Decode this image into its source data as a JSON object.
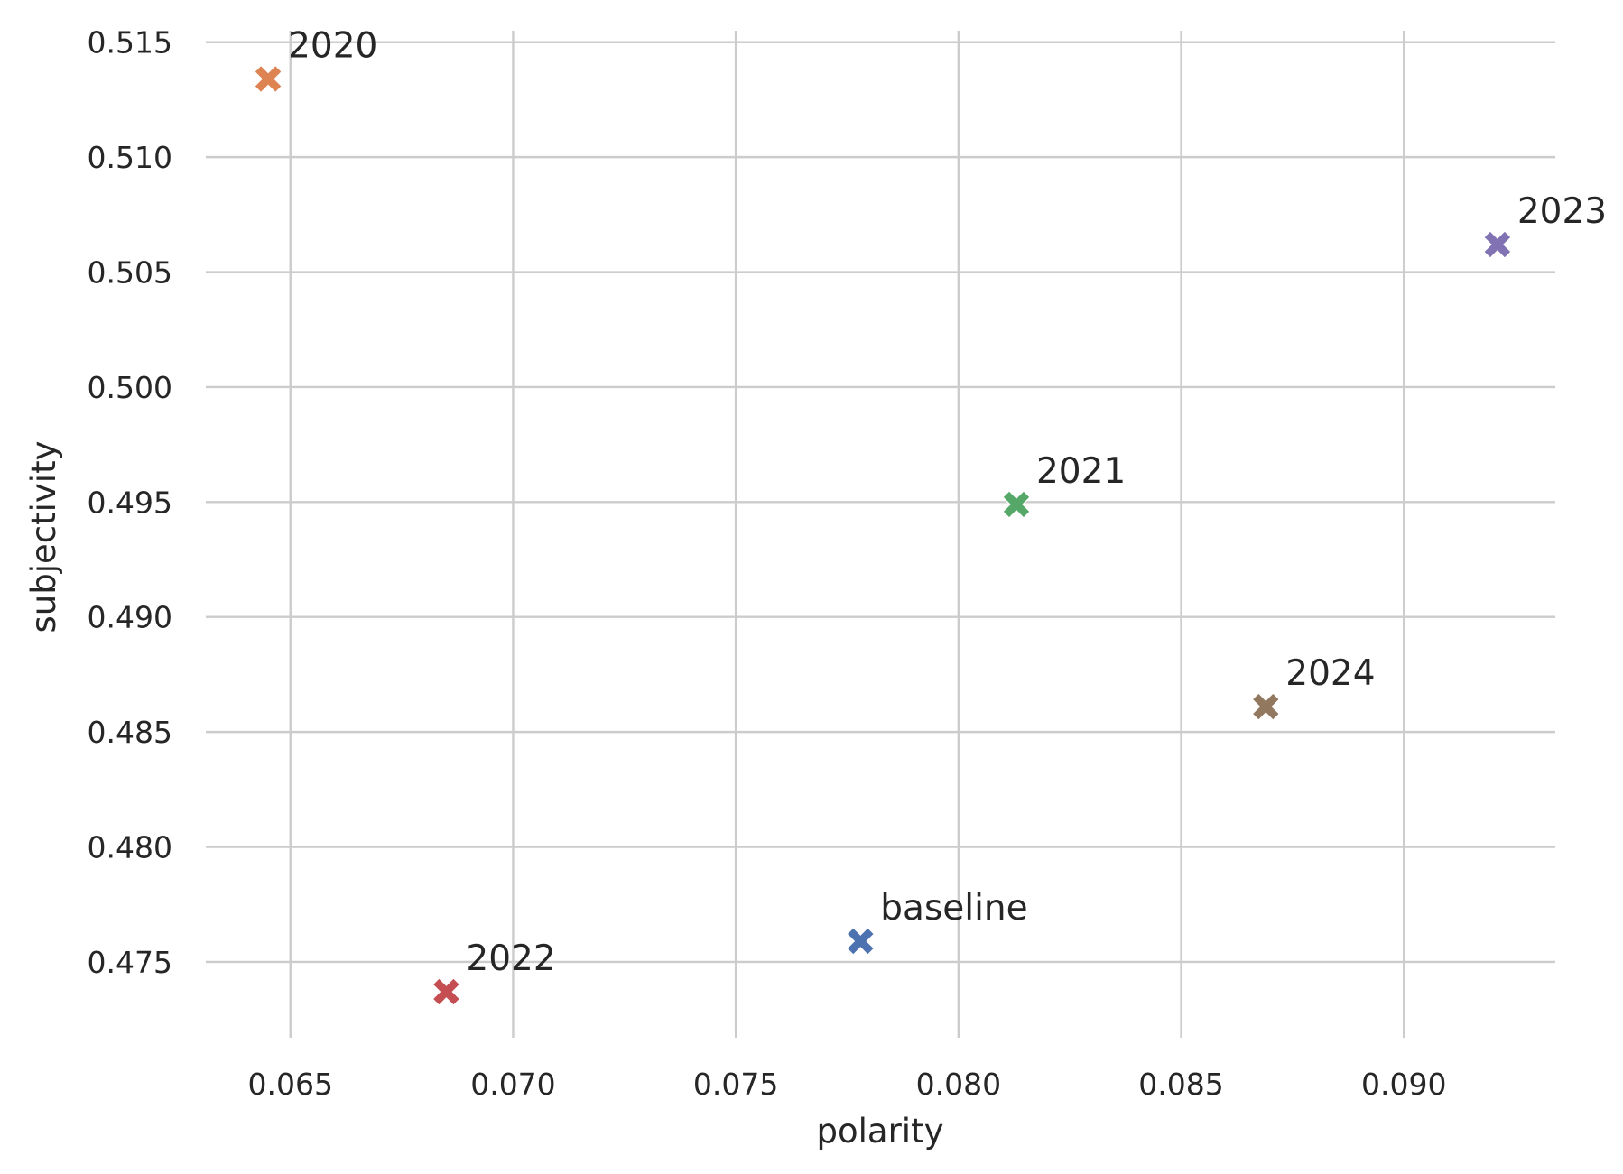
{
  "chart_data": {
    "type": "scatter",
    "title": "",
    "xlabel": "polarity",
    "ylabel": "subjectivity",
    "xlim": [
      0.0631,
      0.0934
    ],
    "ylim": [
      0.4717,
      0.5155
    ],
    "xticks": [
      "0.065",
      "0.070",
      "0.075",
      "0.080",
      "0.085",
      "0.090"
    ],
    "yticks": [
      "0.475",
      "0.480",
      "0.485",
      "0.490",
      "0.495",
      "0.500",
      "0.505",
      "0.510",
      "0.515"
    ],
    "grid": true,
    "marker": "X",
    "points": [
      {
        "label": "baseline",
        "x": 0.0778,
        "y": 0.4759,
        "color": "#4c72b0"
      },
      {
        "label": "2020",
        "x": 0.0645,
        "y": 0.5134,
        "color": "#dd8452"
      },
      {
        "label": "2021",
        "x": 0.0813,
        "y": 0.4949,
        "color": "#55a868"
      },
      {
        "label": "2022",
        "x": 0.0685,
        "y": 0.4737,
        "color": "#c44e52"
      },
      {
        "label": "2023",
        "x": 0.0921,
        "y": 0.5062,
        "color": "#8172b3"
      },
      {
        "label": "2024",
        "x": 0.0869,
        "y": 0.4861,
        "color": "#937860"
      }
    ]
  }
}
